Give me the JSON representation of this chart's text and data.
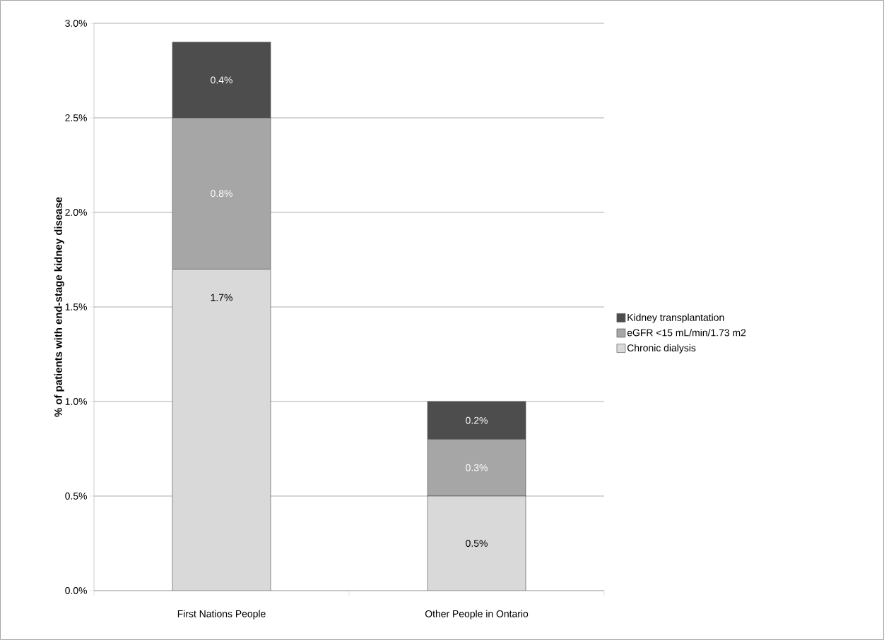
{
  "chart_data": {
    "type": "bar",
    "stacked": true,
    "ylabel": "% of patients with end-stage kidney disease",
    "categories": [
      "First Nations People",
      "Other People in Ontario"
    ],
    "series": [
      {
        "name": "Chronic dialysis",
        "color": "#d9d9d9",
        "values": [
          1.7,
          0.5
        ],
        "value_labels": [
          "1.7%",
          "0.5%"
        ]
      },
      {
        "name": "eGFR <15 mL/min/1.73 m2",
        "color": "#a6a6a6",
        "values": [
          0.8,
          0.3
        ],
        "value_labels": [
          "0.8%",
          "0.3%"
        ]
      },
      {
        "name": "Kidney transplantation",
        "color": "#4d4d4d",
        "values": [
          0.4,
          0.2
        ],
        "value_labels": [
          "0.4%",
          "0.2%"
        ]
      }
    ],
    "ylim": [
      0,
      3.0
    ],
    "yticks": [
      {
        "value": 0,
        "label": "0.0%"
      },
      {
        "value": 0.5,
        "label": "0.5%"
      },
      {
        "value": 1.0,
        "label": "1.0%"
      },
      {
        "value": 1.5,
        "label": "1.5%"
      },
      {
        "value": 2.0,
        "label": "2.0%"
      },
      {
        "value": 2.5,
        "label": "2.5%"
      },
      {
        "value": 3.0,
        "label": "3.0%"
      }
    ],
    "grid": "y",
    "legend": "right"
  }
}
